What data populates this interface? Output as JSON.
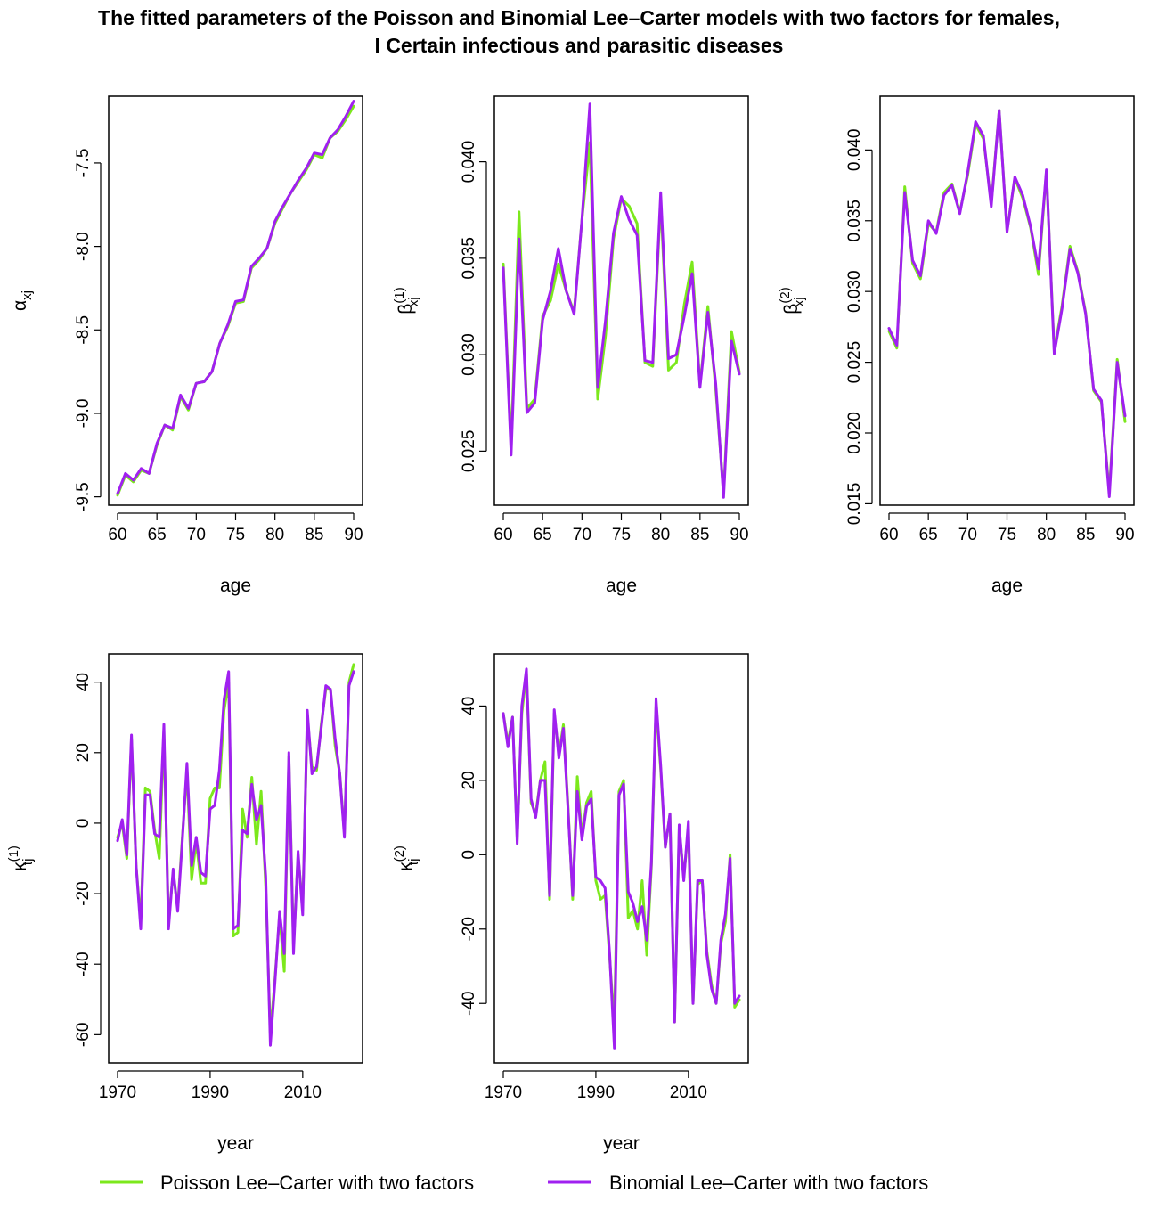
{
  "title": {
    "line1": "The fitted parameters of the Poisson and Binomial Lee–Carter models with two factors for females,",
    "line2": "I Certain infectious and parasitic diseases"
  },
  "colors": {
    "poisson": "#7CE81C",
    "binomial": "#A020F0"
  },
  "legend": [
    {
      "label": "Poisson Lee–Carter with two factors",
      "color": "#7CE81C"
    },
    {
      "label": "Binomial Lee–Carter with two factors",
      "color": "#A020F0"
    }
  ],
  "chart_data": [
    {
      "type": "line",
      "xlabel": "age",
      "ylabel": {
        "base": "α",
        "sub": "xj",
        "sup": ""
      },
      "xlim": [
        60,
        90
      ],
      "ylim": [
        -9.55,
        -7.1
      ],
      "xticks": [
        60,
        65,
        70,
        75,
        80,
        85,
        90
      ],
      "yticks": [
        -9.5,
        -9.0,
        -8.5,
        -8.0,
        -7.5
      ],
      "ytick_labels": [
        "-9.5",
        "-9.0",
        "-8.5",
        "-8.0",
        "-7.5"
      ],
      "x": [
        60,
        61,
        62,
        63,
        64,
        65,
        66,
        67,
        68,
        69,
        70,
        71,
        72,
        73,
        74,
        75,
        76,
        77,
        78,
        79,
        80,
        81,
        82,
        83,
        84,
        85,
        86,
        87,
        88,
        89,
        90
      ],
      "series": [
        {
          "name": "Poisson Lee–Carter with two factors",
          "values": [
            -9.49,
            -9.37,
            -9.41,
            -9.34,
            -9.36,
            -9.19,
            -9.07,
            -9.1,
            -8.9,
            -8.98,
            -8.82,
            -8.81,
            -8.75,
            -8.58,
            -8.48,
            -8.34,
            -8.33,
            -8.13,
            -8.08,
            -8.01,
            -7.86,
            -7.77,
            -7.68,
            -7.61,
            -7.54,
            -7.45,
            -7.47,
            -7.35,
            -7.31,
            -7.24,
            -7.16
          ]
        },
        {
          "name": "Binomial Lee–Carter with two factors",
          "values": [
            -9.48,
            -9.36,
            -9.4,
            -9.33,
            -9.36,
            -9.18,
            -9.07,
            -9.09,
            -8.89,
            -8.97,
            -8.82,
            -8.81,
            -8.75,
            -8.58,
            -8.47,
            -8.33,
            -8.32,
            -8.12,
            -8.07,
            -8.01,
            -7.85,
            -7.76,
            -7.68,
            -7.6,
            -7.53,
            -7.44,
            -7.45,
            -7.35,
            -7.3,
            -7.22,
            -7.13
          ]
        }
      ]
    },
    {
      "type": "line",
      "xlabel": "age",
      "ylabel": {
        "base": "β",
        "sub": "xj",
        "sup": "(1)"
      },
      "xlim": [
        60,
        90
      ],
      "ylim": [
        0.0222,
        0.0434
      ],
      "xticks": [
        60,
        65,
        70,
        75,
        80,
        85,
        90
      ],
      "yticks": [
        0.025,
        0.03,
        0.035,
        0.04
      ],
      "ytick_labels": [
        "0.025",
        "0.030",
        "0.035",
        "0.040"
      ],
      "x": [
        60,
        61,
        62,
        63,
        64,
        65,
        66,
        67,
        68,
        69,
        70,
        71,
        72,
        73,
        74,
        75,
        76,
        77,
        78,
        79,
        80,
        81,
        82,
        83,
        84,
        85,
        86,
        87,
        88,
        89,
        90
      ],
      "series": [
        {
          "name": "Poisson Lee–Carter with two factors",
          "values": [
            0.0347,
            0.0252,
            0.0374,
            0.0272,
            0.0277,
            0.032,
            0.0328,
            0.0347,
            0.0333,
            0.0322,
            0.037,
            0.041,
            0.0277,
            0.031,
            0.036,
            0.0381,
            0.0377,
            0.0368,
            0.0296,
            0.0294,
            0.038,
            0.0292,
            0.0296,
            0.0326,
            0.0348,
            0.0284,
            0.0325,
            0.0282,
            0.0228,
            0.0312,
            0.0291
          ]
        },
        {
          "name": "Binomial Lee–Carter with two factors",
          "values": [
            0.0345,
            0.0248,
            0.036,
            0.027,
            0.0275,
            0.0318,
            0.0333,
            0.0355,
            0.0333,
            0.0321,
            0.037,
            0.043,
            0.0283,
            0.0318,
            0.0363,
            0.0382,
            0.037,
            0.0362,
            0.0297,
            0.0296,
            0.0384,
            0.0298,
            0.03,
            0.032,
            0.0342,
            0.0283,
            0.0322,
            0.0285,
            0.0226,
            0.0307,
            0.029
          ]
        }
      ]
    },
    {
      "type": "line",
      "xlabel": "age",
      "ylabel": {
        "base": "β",
        "sub": "xj",
        "sup": "(2)"
      },
      "xlim": [
        60,
        90
      ],
      "ylim": [
        0.0149,
        0.0438
      ],
      "xticks": [
        60,
        65,
        70,
        75,
        80,
        85,
        90
      ],
      "yticks": [
        0.015,
        0.02,
        0.025,
        0.03,
        0.035,
        0.04
      ],
      "ytick_labels": [
        "0.015",
        "0.020",
        "0.025",
        "0.030",
        "0.035",
        "0.040"
      ],
      "x": [
        60,
        61,
        62,
        63,
        64,
        65,
        66,
        67,
        68,
        69,
        70,
        71,
        72,
        73,
        74,
        75,
        76,
        77,
        78,
        79,
        80,
        81,
        82,
        83,
        84,
        85,
        86,
        87,
        88,
        89,
        90
      ],
      "series": [
        {
          "name": "Poisson Lee–Carter with two factors",
          "values": [
            0.0272,
            0.026,
            0.0374,
            0.032,
            0.0309,
            0.0348,
            0.0342,
            0.037,
            0.0376,
            0.0356,
            0.0382,
            0.0418,
            0.0408,
            0.0362,
            0.0428,
            0.0343,
            0.038,
            0.0366,
            0.0345,
            0.0312,
            0.0385,
            0.0258,
            0.029,
            0.0332,
            0.0314,
            0.0285,
            0.023,
            0.0222,
            0.0158,
            0.0252,
            0.0208
          ]
        },
        {
          "name": "Binomial Lee–Carter with two factors",
          "values": [
            0.0274,
            0.0262,
            0.037,
            0.0322,
            0.0311,
            0.035,
            0.0341,
            0.0368,
            0.0375,
            0.0355,
            0.0384,
            0.042,
            0.041,
            0.036,
            0.0428,
            0.0342,
            0.0381,
            0.0368,
            0.0346,
            0.0316,
            0.0386,
            0.0256,
            0.0288,
            0.033,
            0.0313,
            0.0284,
            0.0231,
            0.0223,
            0.0155,
            0.025,
            0.0212
          ]
        }
      ]
    },
    {
      "type": "line",
      "xlabel": "year",
      "ylabel": {
        "base": "κ",
        "sub": "tj",
        "sup": "(1)"
      },
      "xlim": [
        1970,
        2021
      ],
      "ylim": [
        -68,
        48
      ],
      "xticks": [
        1970,
        1990,
        2010
      ],
      "yticks": [
        -60,
        -40,
        -20,
        0,
        20,
        40
      ],
      "ytick_labels": [
        "-60",
        "-40",
        "-20",
        "0",
        "20",
        "40"
      ],
      "x": [
        1970,
        1971,
        1972,
        1973,
        1974,
        1975,
        1976,
        1977,
        1978,
        1979,
        1980,
        1981,
        1982,
        1983,
        1984,
        1985,
        1986,
        1987,
        1988,
        1989,
        1990,
        1991,
        1992,
        1993,
        1994,
        1995,
        1996,
        1997,
        1998,
        1999,
        2000,
        2001,
        2002,
        2003,
        2004,
        2005,
        2006,
        2007,
        2008,
        2009,
        2010,
        2011,
        2012,
        2013,
        2014,
        2015,
        2016,
        2017,
        2018,
        2019,
        2020,
        2021
      ],
      "series": [
        {
          "name": "Poisson Lee–Carter with two factors",
          "values": [
            -4,
            0,
            -10,
            24,
            -12,
            -28,
            10,
            9,
            -2,
            -10,
            26,
            -28,
            -14,
            -24,
            -4,
            15,
            -16,
            -5,
            -17,
            -17,
            7,
            10,
            10,
            32,
            40,
            -32,
            -31,
            4,
            -4,
            13,
            -6,
            9,
            -18,
            -60,
            -44,
            -26,
            -42,
            19,
            -35,
            -9,
            -24,
            30,
            16,
            15,
            28,
            38,
            38,
            22,
            14,
            -3,
            40,
            45
          ]
        },
        {
          "name": "Binomial Lee–Carter with two factors",
          "values": [
            -5,
            1,
            -9,
            25,
            -12,
            -30,
            8,
            8,
            -3,
            -4,
            28,
            -30,
            -13,
            -25,
            -5,
            17,
            -12,
            -4,
            -14,
            -15,
            4,
            5,
            15,
            35,
            43,
            -30,
            -29,
            -2,
            -3,
            11,
            1,
            5,
            -15,
            -63,
            -45,
            -25,
            -37,
            20,
            -37,
            -8,
            -26,
            32,
            14,
            16,
            27,
            39,
            38,
            24,
            14,
            -4,
            39,
            43
          ]
        }
      ]
    },
    {
      "type": "line",
      "xlabel": "year",
      "ylabel": {
        "base": "κ",
        "sub": "tj",
        "sup": "(2)"
      },
      "xlim": [
        1970,
        2021
      ],
      "ylim": [
        -56,
        54
      ],
      "xticks": [
        1970,
        1990,
        2010
      ],
      "yticks": [
        -40,
        -20,
        0,
        20,
        40
      ],
      "ytick_labels": [
        "-40",
        "-20",
        "0",
        "20",
        "40"
      ],
      "x": [
        1970,
        1971,
        1972,
        1973,
        1974,
        1975,
        1976,
        1977,
        1978,
        1979,
        1980,
        1981,
        1982,
        1983,
        1984,
        1985,
        1986,
        1987,
        1988,
        1989,
        1990,
        1991,
        1992,
        1993,
        1994,
        1995,
        1996,
        1997,
        1998,
        1999,
        2000,
        2001,
        2002,
        2003,
        2004,
        2005,
        2006,
        2007,
        2008,
        2009,
        2010,
        2011,
        2012,
        2013,
        2014,
        2015,
        2016,
        2017,
        2018,
        2019,
        2020,
        2021
      ],
      "series": [
        {
          "name": "Poisson Lee–Carter with two factors",
          "values": [
            38,
            30,
            37,
            4,
            38,
            49,
            14,
            11,
            20,
            25,
            -12,
            38,
            27,
            35,
            13,
            -12,
            21,
            5,
            14,
            17,
            -7,
            -12,
            -11,
            -28,
            -46,
            17,
            20,
            -17,
            -15,
            -20,
            -7,
            -27,
            -3,
            40,
            23,
            2,
            11,
            -45,
            7,
            -6,
            7,
            -40,
            -8,
            -7,
            -26,
            -35,
            -40,
            -24,
            -18,
            0,
            -41,
            -39
          ]
        },
        {
          "name": "Binomial Lee–Carter with two factors",
          "values": [
            38,
            29,
            37,
            3,
            40,
            50,
            15,
            10,
            20,
            20,
            -11,
            39,
            26,
            34,
            12,
            -11,
            17,
            4,
            13,
            15,
            -6,
            -7,
            -9,
            -27,
            -52,
            16,
            19,
            -10,
            -13,
            -18,
            -14,
            -23,
            -2,
            42,
            24,
            2,
            11,
            -45,
            8,
            -7,
            9,
            -40,
            -7,
            -7,
            -27,
            -36,
            -40,
            -23,
            -16,
            -1,
            -40,
            -38
          ]
        }
      ]
    }
  ]
}
